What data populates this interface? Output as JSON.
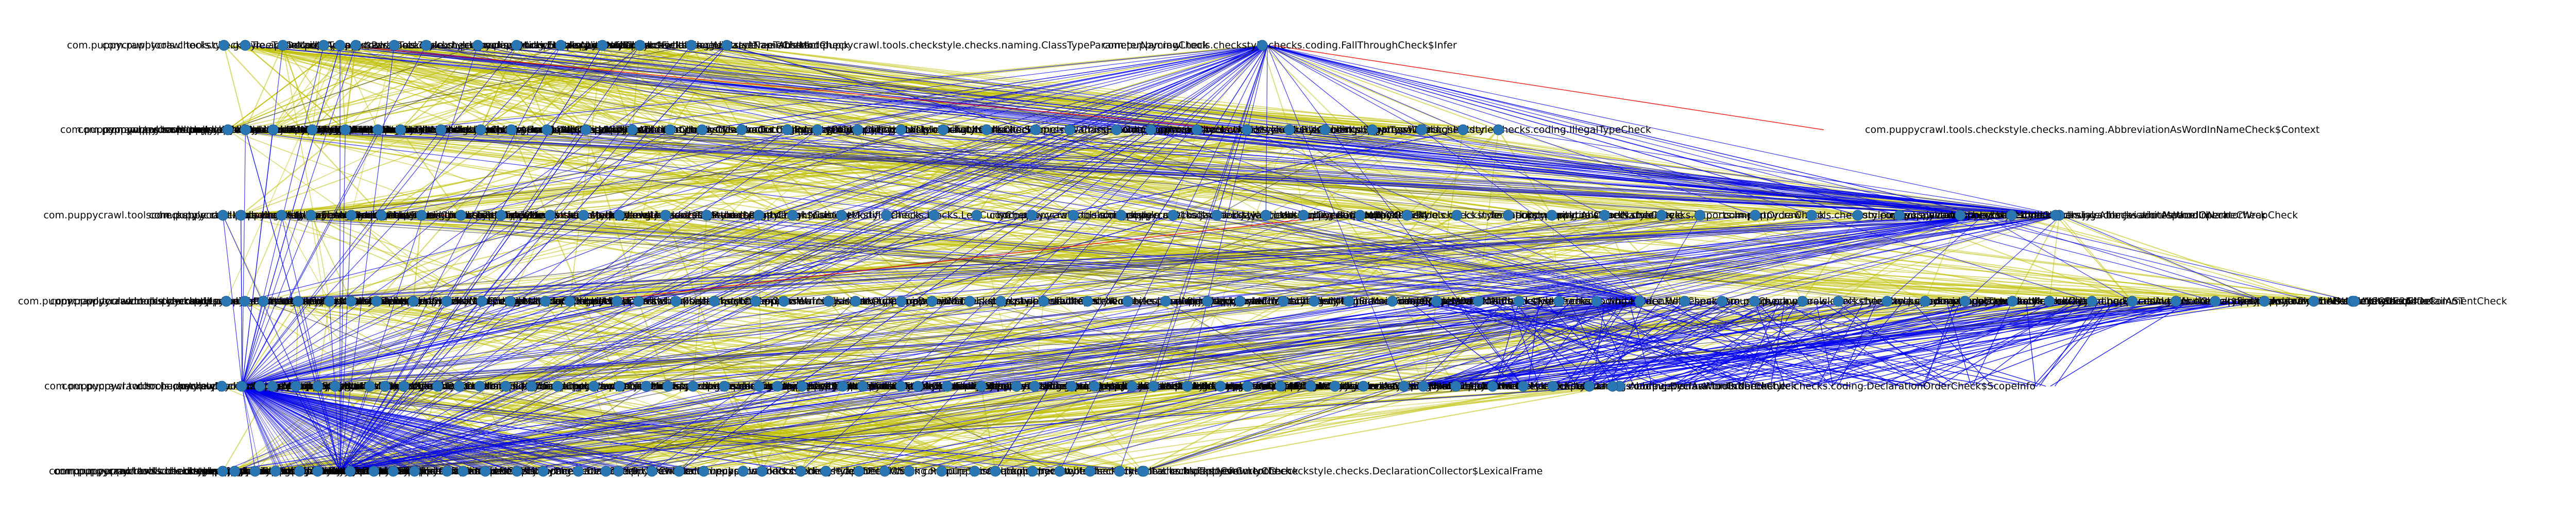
{
  "graph": {
    "labels": [
      "com.puppycrawl.tools.checkstyle",
      "com.puppycrawl.tools.checkstyle.gui.ParseTreeTableModel",
      "com.puppycrawl.tools.checkstyle.checks.coding.UnnecessarySemicolonInTryWithResourcesCheck",
      "com.puppycrawl.tools.checkstyle.checks.javadoc.JavadocStyleCheck",
      "com.puppycrawl.tools.checkstyle.checks.javadoc.TagParser$Point",
      "com.puppycrawl.tools.checkstyle.api.FileContents",
      "com.puppycrawl.tools.checkstyle.checks.indentation.IndentLevel",
      "com.puppycrawl.tools.checkstyle.checks.sizes.MethodLengthCheck$Context",
      "com.puppycrawl.tools.checkstyle.checks.whitespace.WhitespaceAroundCheck",
      "com.puppycrawl.tools.checkstyle.gui.MainFrameModel$ParseMode",
      "com.puppycrawl.tools.checkstyle.checks.DescendantTokenCheck",
      "com.puppycrawl.tools.checkstyle.api.DetailAST",
      "com.puppycrawl.tools.checkstyle.checks.coding.FinalLocalVariableCheck$ScopeData",
      "com.puppycrawl.tools.checkstyle.checks.naming.AbbreviationAsWordInNameCheck",
      "com.puppycrawl.tools.checkstyle.checks.DeclarationCollector$LexicalFrame",
      "com.puppycrawl.tools.checkstyle.checks.coding.IllegalTypeCheck",
      "com.puppycrawl.tools.checkstyle.checks.indentation.IndentationCheck",
      "com.puppycrawl.tools.checkstyle.DefaultContext",
      "com.puppycrawl.tools.checkstyle.api.AbstractCheck",
      "com.puppycrawl.tools.checkstyle.checks.design.VisibilityModifierCheck",
      "com.puppycrawl.tools.checkstyle.checks.whitespace.NoWhitespaceAfterCheck",
      "com.puppycrawl.tools.checkstyle.checks.naming.AbstractNameCheck",
      "com.puppycrawl.tools.checkstyle.checks.coding.RequireThisCheck",
      "com.puppycrawl.tools.checkstyle.checks.blocks.LeftCurlyCheck",
      "com.puppycrawl.tools.checkstyle.checks.metrics.ClassFanOutComplexityCheck",
      "com.puppycrawl.tools.checkstyle.checks.imports.ImportOrderCheck",
      "com.puppycrawl.tools.checkstyle.checks.javadoc.JavadocMethodCheck",
      "com.puppycrawl.tools.checkstyle.checks.coding.HiddenFieldCheck",
      "com.puppycrawl.tools.checkstyle.checks.coding.MultipleStringLiteralsCheck",
      "com.puppycrawl.tools.checkstyle.checks.javadoc.AbstractJavadocCheck",
      "com.puppycrawl.tools.checkstyle.checks.TodoCommentCheck",
      "com.puppycrawl.tools.checkstyle.checks.coding.DeclarationOrderCheck",
      "com.puppycrawl.tools.checkstyle.checks.SuppressWarningsHolder",
      "com.puppycrawl.tools.checkstyle.checks.coding.EqualsAvoidNullCheck$FieldFrame"
    ],
    "rows": [
      {
        "nodes": [
          {
            "text": "com.puppycrawl.tools.checkstyle.gui.TreeTableModelAdapter$ParseTreeTable"
          },
          {
            "text": "com.puppycrawl.tools.checkstyle.TreeWalker$Context"
          },
          {
            "text": "com.puppycrawl.tools.checkstyle.checks.whitespace.ParenPadCheck"
          },
          {
            "text": "com.puppycrawl.tools.checkstyle.api.FullIdent"
          },
          {
            "text": "com.puppycrawl.tools.checkstyle.ConfigurationLoader$InternalLoader"
          },
          {
            "text": "com.puppycrawl.tools.checkstyle.checks.coding.FallThroughCheck$Infer"
          },
          {
            "text": "com.puppycrawl.tools.checkstyle.checks.coding.FinalLocalVariableCheck"
          },
          {
            "text": "com.puppycrawl.tools.checkstyle.checks.naming.ClassTypeParameterNamingCheck"
          }
        ]
      },
      {
        "nodes": [
          {
            "text": "com.puppycrawl.tools.checkstyle.gui.ParseTreeTableModel"
          },
          {
            "text": "DUMMYCODE466"
          },
          {
            "text": "com.puppycrawl.tools.checkstyle.checks.javadoc.JavadocTagInfo"
          },
          {
            "text": "com.puppycrawl.tools.checkstyle.checks.regexp.RegexpCheck"
          },
          {
            "text": "com.puppycrawl.tools.checkstyle.utils.CommonUtil"
          },
          {
            "text": "com.puppycrawl.tools.checkstyle.checks.annotation.AnnotationLocationCheck"
          },
          {
            "text": "com.puppycrawl.tools.checkstyle.checks.sizes.MethodLengthCheck"
          },
          {
            "text": "com.puppycrawl.tools.checkstyle.checks.blocks.RightCurlyCheck$Details"
          },
          {
            "text": "com.puppycrawl.tools.checkstyle.checks.naming.AbbreviationAsWordInNameCheck$Context"
          }
        ]
      },
      {
        "nodes": [
          {
            "text": "com.puppycrawl.tools.checkstyle.checks.coding.OneStatementPerLineCheck"
          },
          {
            "text": "com.puppycrawl.tools.checkstyle.checks.imports.CustomImportOrderCheck"
          },
          {
            "text": "DUMMYCODE83"
          },
          {
            "text": "com.puppycrawl.tools.checkstyle.checks.indentation.IndentLevel"
          },
          {
            "text": "DUMMYCODE34"
          },
          {
            "text": "DUMMYCODE"
          },
          {
            "text": "com.puppycrawl.tools.checkstyle.checks.whitespace.OperatorWrapCheck"
          }
        ]
      },
      {
        "nodes": [
          {
            "text": "com.puppycrawl.tools.checkstyle.checks.coding.UnnecessaryParenthesesCheck"
          },
          {
            "text": "DUMMYCODE264"
          }
        ]
      },
      {
        "nodes": [
          {
            "text": "com.puppycrawl.tools.checkstyle.checks.javadoc.JavadocNodeImpl"
          },
          {
            "text": "com.puppycrawl.tools.checkstyle.checks.coding.EqualsAvoidNullCheck$FieldFrame"
          },
          {
            "text": "com.puppycrawl.tools.checkstyle.checks.coding.DeclarationOrderCheck$ScopeInfo"
          }
        ]
      },
      {
        "nodes": [
          {
            "text": "com.puppycrawl.tools.checkstyle.api.TokenTypes"
          },
          {
            "text": "com.puppycrawl.tools.checkstyle.checks.coding.AbstractSuperCheck"
          },
          {
            "text": "com.puppycrawl.tools.checkstyle.checks.DeclarationCollector$LexicalFrame"
          }
        ]
      }
    ],
    "colors": {
      "node": "#2a77b4",
      "edge_yellow": "#bdbd00",
      "edge_blue": "#0000ee",
      "edge_red": "#ee0000",
      "edge_dark": "#333333"
    }
  }
}
